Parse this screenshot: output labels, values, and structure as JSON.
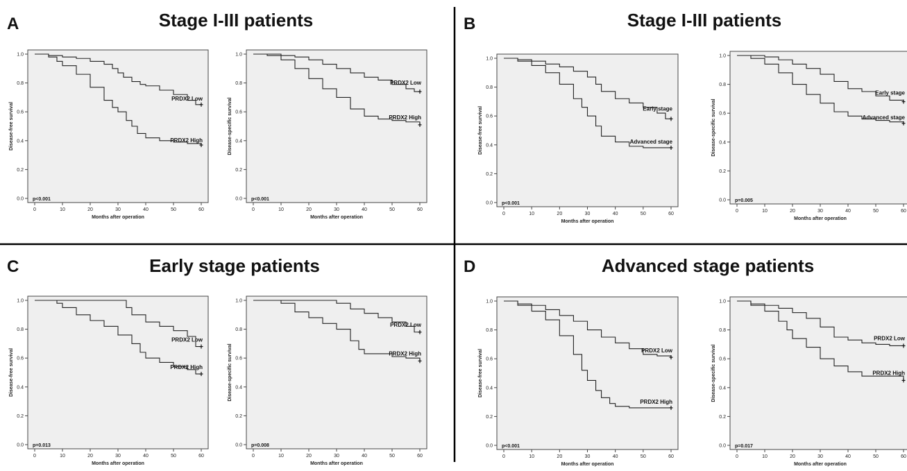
{
  "panels": [
    {
      "letter": "A",
      "title": "Stage I-III patients"
    },
    {
      "letter": "B",
      "title": "Stage I-III patients"
    },
    {
      "letter": "C",
      "title": "Early stage patients"
    },
    {
      "letter": "D",
      "title": "Advanced stage patients"
    }
  ],
  "chart_data": [
    {
      "type": "line",
      "panel": "A",
      "ylabel": "Disease-free survival",
      "xlabel": "Months after operation",
      "xlim": [
        0,
        60
      ],
      "ylim": [
        0,
        1.0
      ],
      "x_ticks": [
        0,
        10,
        20,
        30,
        40,
        50,
        60
      ],
      "y_ticks": [
        0.0,
        0.2,
        0.4,
        0.6,
        0.8,
        1.0
      ],
      "grid": false,
      "p_value": "p<0.001",
      "series": [
        {
          "name": "PRDX2 Low",
          "x": [
            0,
            5,
            10,
            15,
            20,
            25,
            28,
            30,
            32,
            35,
            38,
            40,
            45,
            50,
            55,
            58,
            60
          ],
          "y": [
            1.0,
            0.99,
            0.98,
            0.97,
            0.95,
            0.93,
            0.9,
            0.87,
            0.84,
            0.81,
            0.79,
            0.78,
            0.75,
            0.72,
            0.68,
            0.65,
            0.65
          ]
        },
        {
          "name": "PRDX2 High",
          "x": [
            0,
            5,
            8,
            10,
            15,
            20,
            25,
            28,
            30,
            33,
            35,
            37,
            40,
            45,
            50,
            55,
            60
          ],
          "y": [
            1.0,
            0.98,
            0.95,
            0.92,
            0.86,
            0.77,
            0.68,
            0.63,
            0.6,
            0.54,
            0.5,
            0.45,
            0.42,
            0.4,
            0.39,
            0.38,
            0.37
          ]
        }
      ]
    },
    {
      "type": "line",
      "panel": "A",
      "ylabel": "Disease-specific survival",
      "xlabel": "Months after operation",
      "xlim": [
        0,
        60
      ],
      "ylim": [
        0,
        1.0
      ],
      "x_ticks": [
        0,
        10,
        20,
        30,
        40,
        50,
        60
      ],
      "y_ticks": [
        0.0,
        0.2,
        0.4,
        0.6,
        0.8,
        1.0
      ],
      "grid": false,
      "p_value": "p<0.001",
      "series": [
        {
          "name": "PRDX2 Low",
          "x": [
            0,
            5,
            10,
            15,
            20,
            25,
            30,
            35,
            40,
            45,
            50,
            55,
            58,
            60
          ],
          "y": [
            1.0,
            1.0,
            0.99,
            0.98,
            0.96,
            0.93,
            0.9,
            0.87,
            0.84,
            0.82,
            0.79,
            0.76,
            0.74,
            0.74
          ]
        },
        {
          "name": "PRDX2 High",
          "x": [
            0,
            5,
            10,
            15,
            20,
            25,
            30,
            35,
            40,
            45,
            50,
            55,
            60
          ],
          "y": [
            1.0,
            0.99,
            0.96,
            0.9,
            0.83,
            0.76,
            0.7,
            0.62,
            0.57,
            0.55,
            0.54,
            0.53,
            0.51
          ]
        }
      ]
    },
    {
      "type": "line",
      "panel": "B",
      "ylabel": "Disease-free survival",
      "xlabel": "Months after operation",
      "xlim": [
        0,
        60
      ],
      "ylim": [
        0,
        1.0
      ],
      "x_ticks": [
        0,
        10,
        20,
        30,
        40,
        50,
        60
      ],
      "y_ticks": [
        0.0,
        0.2,
        0.4,
        0.6,
        0.8,
        1.0
      ],
      "grid": false,
      "p_value": "p<0.001",
      "series": [
        {
          "name": "Early stage",
          "x": [
            0,
            5,
            10,
            15,
            20,
            25,
            30,
            33,
            35,
            40,
            45,
            50,
            55,
            58,
            60
          ],
          "y": [
            1.0,
            0.99,
            0.98,
            0.96,
            0.94,
            0.91,
            0.87,
            0.82,
            0.77,
            0.72,
            0.69,
            0.66,
            0.62,
            0.58,
            0.58
          ]
        },
        {
          "name": "Advanced stage",
          "x": [
            0,
            5,
            10,
            15,
            20,
            25,
            28,
            30,
            33,
            35,
            40,
            45,
            50,
            55,
            60
          ],
          "y": [
            1.0,
            0.98,
            0.95,
            0.9,
            0.82,
            0.72,
            0.66,
            0.6,
            0.53,
            0.46,
            0.42,
            0.39,
            0.38,
            0.38,
            0.38
          ]
        }
      ]
    },
    {
      "type": "line",
      "panel": "B",
      "ylabel": "Disease-specific survival",
      "xlabel": "Months after operation",
      "xlim": [
        0,
        60
      ],
      "ylim": [
        0,
        1.0
      ],
      "x_ticks": [
        0,
        10,
        20,
        30,
        40,
        50,
        60
      ],
      "y_ticks": [
        0.0,
        0.2,
        0.4,
        0.6,
        0.8,
        1.0
      ],
      "grid": false,
      "p_value": "p=0.005",
      "series": [
        {
          "name": "Early stage",
          "x": [
            0,
            5,
            10,
            15,
            20,
            25,
            30,
            35,
            40,
            45,
            50,
            55,
            60
          ],
          "y": [
            1.0,
            1.0,
            0.99,
            0.97,
            0.94,
            0.91,
            0.87,
            0.82,
            0.77,
            0.75,
            0.72,
            0.69,
            0.68
          ]
        },
        {
          "name": "Advanced stage",
          "x": [
            0,
            5,
            10,
            15,
            20,
            25,
            30,
            35,
            40,
            45,
            50,
            55,
            60
          ],
          "y": [
            1.0,
            0.98,
            0.94,
            0.88,
            0.8,
            0.73,
            0.67,
            0.61,
            0.58,
            0.56,
            0.55,
            0.54,
            0.53
          ]
        }
      ]
    },
    {
      "type": "line",
      "panel": "C",
      "ylabel": "Disease-free survival",
      "xlabel": "Months after operation",
      "xlim": [
        0,
        60
      ],
      "ylim": [
        0,
        1.0
      ],
      "x_ticks": [
        0,
        10,
        20,
        30,
        40,
        50,
        60
      ],
      "y_ticks": [
        0.0,
        0.2,
        0.4,
        0.6,
        0.8,
        1.0
      ],
      "grid": false,
      "p_value": "p=0.013",
      "series": [
        {
          "name": "PRDX2 Low",
          "x": [
            0,
            10,
            20,
            30,
            33,
            35,
            40,
            45,
            50,
            55,
            58,
            60
          ],
          "y": [
            1.0,
            1.0,
            1.0,
            1.0,
            0.95,
            0.9,
            0.85,
            0.82,
            0.79,
            0.75,
            0.68,
            0.68
          ]
        },
        {
          "name": "PRDX2 High",
          "x": [
            0,
            8,
            10,
            15,
            20,
            25,
            30,
            35,
            38,
            40,
            45,
            50,
            55,
            58,
            60
          ],
          "y": [
            1.0,
            0.98,
            0.95,
            0.9,
            0.86,
            0.82,
            0.76,
            0.7,
            0.64,
            0.6,
            0.57,
            0.54,
            0.52,
            0.49,
            0.49
          ]
        }
      ]
    },
    {
      "type": "line",
      "panel": "C",
      "ylabel": "Disease-specific survival",
      "xlabel": "Months after operation",
      "xlim": [
        0,
        60
      ],
      "ylim": [
        0,
        1.0
      ],
      "x_ticks": [
        0,
        10,
        20,
        30,
        40,
        50,
        60
      ],
      "y_ticks": [
        0.0,
        0.2,
        0.4,
        0.6,
        0.8,
        1.0
      ],
      "grid": false,
      "p_value": "p=0.008",
      "series": [
        {
          "name": "PRDX2 Low",
          "x": [
            0,
            10,
            20,
            25,
            30,
            35,
            40,
            45,
            50,
            55,
            58,
            60
          ],
          "y": [
            1.0,
            1.0,
            1.0,
            1.0,
            0.98,
            0.94,
            0.91,
            0.88,
            0.85,
            0.82,
            0.78,
            0.78
          ]
        },
        {
          "name": "PRDX2 High",
          "x": [
            0,
            10,
            15,
            20,
            25,
            30,
            35,
            38,
            40,
            45,
            50,
            55,
            60
          ],
          "y": [
            1.0,
            0.98,
            0.92,
            0.88,
            0.84,
            0.8,
            0.72,
            0.66,
            0.63,
            0.63,
            0.61,
            0.6,
            0.58
          ]
        }
      ]
    },
    {
      "type": "line",
      "panel": "D",
      "ylabel": "Disease-free survival",
      "xlabel": "Months after operation",
      "xlim": [
        0,
        60
      ],
      "ylim": [
        0,
        1.0
      ],
      "x_ticks": [
        0,
        10,
        20,
        30,
        40,
        50,
        60
      ],
      "y_ticks": [
        0.0,
        0.2,
        0.4,
        0.6,
        0.8,
        1.0
      ],
      "grid": false,
      "p_value": "p<0.001",
      "series": [
        {
          "name": "PRDX2 Low",
          "x": [
            0,
            5,
            10,
            15,
            20,
            25,
            30,
            35,
            40,
            45,
            50,
            55,
            60
          ],
          "y": [
            1.0,
            0.98,
            0.97,
            0.94,
            0.9,
            0.86,
            0.8,
            0.75,
            0.71,
            0.67,
            0.63,
            0.62,
            0.61
          ]
        },
        {
          "name": "PRDX2 High",
          "x": [
            0,
            5,
            10,
            15,
            20,
            25,
            28,
            30,
            33,
            35,
            38,
            40,
            45,
            50,
            55,
            60
          ],
          "y": [
            1.0,
            0.97,
            0.93,
            0.87,
            0.76,
            0.63,
            0.52,
            0.45,
            0.38,
            0.33,
            0.29,
            0.27,
            0.26,
            0.26,
            0.26,
            0.26
          ]
        }
      ]
    },
    {
      "type": "line",
      "panel": "D",
      "ylabel": "Disease-specific survival",
      "xlabel": "Months after operation",
      "xlim": [
        0,
        60
      ],
      "ylim": [
        0,
        1.0
      ],
      "x_ticks": [
        0,
        10,
        20,
        30,
        40,
        50,
        60
      ],
      "y_ticks": [
        0.0,
        0.2,
        0.4,
        0.6,
        0.8,
        1.0
      ],
      "grid": false,
      "p_value": "p=0.017",
      "series": [
        {
          "name": "PRDX2 Low",
          "x": [
            0,
            5,
            10,
            15,
            20,
            25,
            30,
            35,
            40,
            45,
            50,
            55,
            60
          ],
          "y": [
            1.0,
            0.98,
            0.97,
            0.95,
            0.92,
            0.88,
            0.82,
            0.75,
            0.73,
            0.71,
            0.7,
            0.69,
            0.69
          ]
        },
        {
          "name": "PRDX2 High",
          "x": [
            0,
            5,
            10,
            15,
            18,
            20,
            25,
            30,
            35,
            40,
            45,
            50,
            55,
            60
          ],
          "y": [
            1.0,
            0.97,
            0.93,
            0.86,
            0.8,
            0.74,
            0.68,
            0.6,
            0.55,
            0.51,
            0.48,
            0.48,
            0.48,
            0.45
          ]
        }
      ]
    }
  ]
}
